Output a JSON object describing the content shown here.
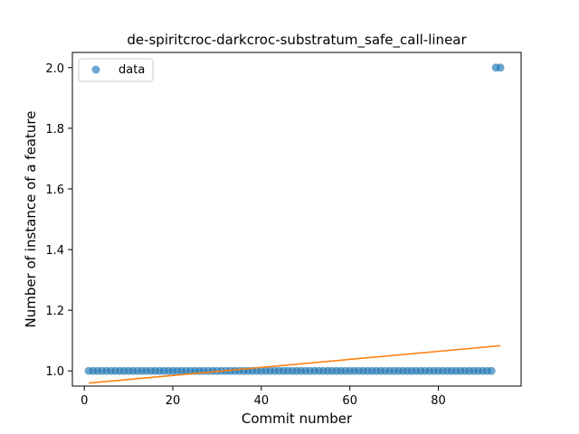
{
  "chart_data": {
    "type": "scatter",
    "title": "de-spiritcroc-darkcroc-substratum_safe_call-linear",
    "xlabel": "Commit number",
    "ylabel": "Number of instance of a feature",
    "xlim": [
      -2.7,
      98.7
    ],
    "ylim": [
      0.95,
      2.05
    ],
    "x_ticks": [
      0,
      20,
      40,
      60,
      80
    ],
    "y_ticks": [
      1.0,
      1.2,
      1.4,
      1.6,
      1.8,
      2.0
    ],
    "x_tick_labels": [
      "0",
      "20",
      "40",
      "60",
      "80"
    ],
    "y_tick_labels": [
      "1.0",
      "1.2",
      "1.4",
      "1.6",
      "1.8",
      "2.0"
    ],
    "grid": false,
    "legend": {
      "position": "top-left",
      "entries": [
        "data"
      ]
    },
    "colors": {
      "points": "#1f77b4",
      "fit": "#ff7f0e"
    },
    "series": [
      {
        "name": "data",
        "kind": "scatter",
        "points": [
          [
            1,
            1
          ],
          [
            2,
            1
          ],
          [
            3,
            1
          ],
          [
            4,
            1
          ],
          [
            5,
            1
          ],
          [
            6,
            1
          ],
          [
            7,
            1
          ],
          [
            8,
            1
          ],
          [
            9,
            1
          ],
          [
            10,
            1
          ],
          [
            11,
            1
          ],
          [
            12,
            1
          ],
          [
            13,
            1
          ],
          [
            14,
            1
          ],
          [
            15,
            1
          ],
          [
            16,
            1
          ],
          [
            17,
            1
          ],
          [
            18,
            1
          ],
          [
            19,
            1
          ],
          [
            20,
            1
          ],
          [
            21,
            1
          ],
          [
            22,
            1
          ],
          [
            23,
            1
          ],
          [
            24,
            1
          ],
          [
            25,
            1
          ],
          [
            26,
            1
          ],
          [
            27,
            1
          ],
          [
            28,
            1
          ],
          [
            29,
            1
          ],
          [
            30,
            1
          ],
          [
            31,
            1
          ],
          [
            32,
            1
          ],
          [
            33,
            1
          ],
          [
            34,
            1
          ],
          [
            35,
            1
          ],
          [
            36,
            1
          ],
          [
            37,
            1
          ],
          [
            38,
            1
          ],
          [
            39,
            1
          ],
          [
            40,
            1
          ],
          [
            41,
            1
          ],
          [
            42,
            1
          ],
          [
            43,
            1
          ],
          [
            44,
            1
          ],
          [
            45,
            1
          ],
          [
            46,
            1
          ],
          [
            47,
            1
          ],
          [
            48,
            1
          ],
          [
            49,
            1
          ],
          [
            50,
            1
          ],
          [
            51,
            1
          ],
          [
            52,
            1
          ],
          [
            53,
            1
          ],
          [
            54,
            1
          ],
          [
            55,
            1
          ],
          [
            56,
            1
          ],
          [
            57,
            1
          ],
          [
            58,
            1
          ],
          [
            59,
            1
          ],
          [
            60,
            1
          ],
          [
            61,
            1
          ],
          [
            62,
            1
          ],
          [
            63,
            1
          ],
          [
            64,
            1
          ],
          [
            65,
            1
          ],
          [
            66,
            1
          ],
          [
            67,
            1
          ],
          [
            68,
            1
          ],
          [
            69,
            1
          ],
          [
            70,
            1
          ],
          [
            71,
            1
          ],
          [
            72,
            1
          ],
          [
            73,
            1
          ],
          [
            74,
            1
          ],
          [
            75,
            1
          ],
          [
            76,
            1
          ],
          [
            77,
            1
          ],
          [
            78,
            1
          ],
          [
            79,
            1
          ],
          [
            80,
            1
          ],
          [
            81,
            1
          ],
          [
            82,
            1
          ],
          [
            83,
            1
          ],
          [
            84,
            1
          ],
          [
            85,
            1
          ],
          [
            86,
            1
          ],
          [
            87,
            1
          ],
          [
            88,
            1
          ],
          [
            89,
            1
          ],
          [
            90,
            1
          ],
          [
            91,
            1
          ],
          [
            92,
            1
          ],
          [
            93,
            2
          ],
          [
            94,
            2
          ]
        ]
      },
      {
        "kind": "line",
        "points": [
          [
            1,
            0.96
          ],
          [
            94,
            1.083
          ]
        ]
      }
    ]
  }
}
